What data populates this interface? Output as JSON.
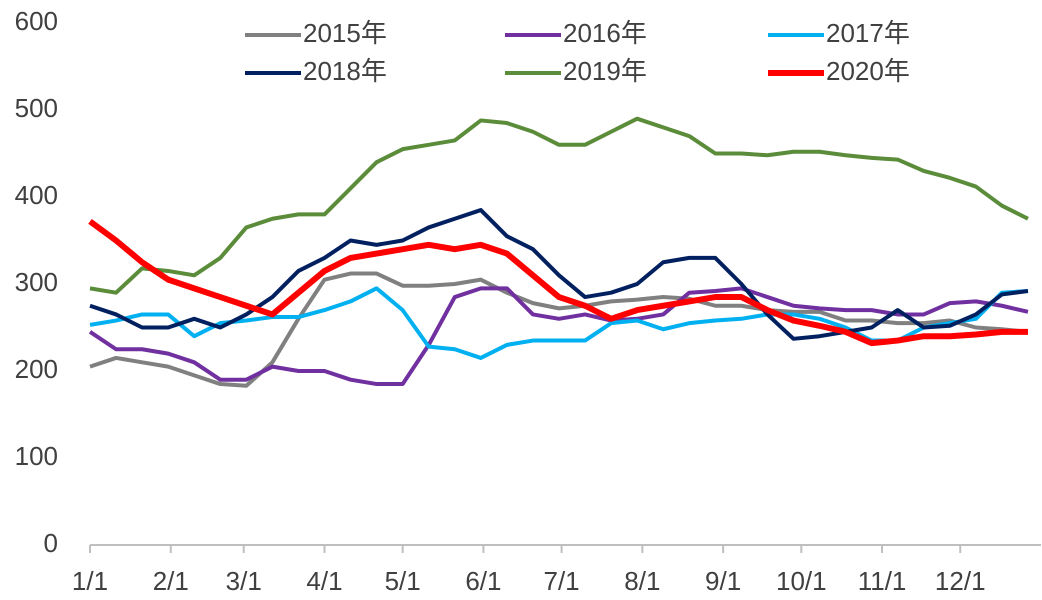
{
  "chart_data": {
    "type": "line",
    "x": [
      0,
      10,
      20,
      30,
      40,
      50,
      60,
      70,
      80,
      90,
      100,
      110,
      120,
      130,
      140,
      150,
      160,
      170,
      180,
      190,
      200,
      210,
      220,
      230,
      240,
      250,
      260,
      270,
      280,
      290,
      300,
      310,
      320,
      330,
      340,
      350,
      360
    ],
    "xlim": [
      0,
      365
    ],
    "xticks": [
      {
        "value": 0,
        "label": "1/1"
      },
      {
        "value": 31,
        "label": "2/1"
      },
      {
        "value": 59,
        "label": "3/1"
      },
      {
        "value": 90,
        "label": "4/1"
      },
      {
        "value": 120,
        "label": "5/1"
      },
      {
        "value": 151,
        "label": "6/1"
      },
      {
        "value": 181,
        "label": "7/1"
      },
      {
        "value": 212,
        "label": "8/1"
      },
      {
        "value": 243,
        "label": "9/1"
      },
      {
        "value": 273,
        "label": "10/1"
      },
      {
        "value": 304,
        "label": "11/1"
      },
      {
        "value": 334,
        "label": "12/1"
      }
    ],
    "ylim": [
      0,
      600
    ],
    "yticks": [
      0,
      100,
      200,
      300,
      400,
      500,
      600
    ],
    "series": [
      {
        "name": "2015年",
        "color": "#808080",
        "width": 4,
        "values": [
          205,
          215,
          210,
          205,
          195,
          185,
          183,
          210,
          260,
          305,
          312,
          312,
          298,
          298,
          300,
          305,
          290,
          278,
          272,
          275,
          280,
          282,
          285,
          283,
          275,
          275,
          270,
          268,
          268,
          258,
          258,
          255,
          255,
          258,
          250,
          248,
          245
        ]
      },
      {
        "name": "2016年",
        "color": "#7030a0",
        "width": 4,
        "values": [
          245,
          225,
          225,
          220,
          210,
          190,
          190,
          205,
          200,
          200,
          190,
          185,
          185,
          230,
          285,
          295,
          295,
          265,
          260,
          265,
          258,
          260,
          265,
          290,
          292,
          295,
          285,
          275,
          272,
          270,
          270,
          265,
          265,
          278,
          280,
          275,
          268
        ]
      },
      {
        "name": "2017年",
        "color": "#00b0f0",
        "width": 4,
        "values": [
          253,
          258,
          265,
          265,
          240,
          255,
          258,
          262,
          262,
          270,
          280,
          295,
          270,
          228,
          225,
          215,
          230,
          235,
          235,
          235,
          255,
          258,
          248,
          255,
          258,
          260,
          265,
          265,
          260,
          250,
          235,
          235,
          250,
          255,
          260,
          290,
          292
        ]
      },
      {
        "name": "2018年",
        "color": "#002060",
        "width": 4,
        "values": [
          275,
          265,
          250,
          250,
          260,
          250,
          265,
          285,
          315,
          330,
          350,
          345,
          350,
          365,
          375,
          385,
          355,
          340,
          310,
          285,
          290,
          300,
          325,
          330,
          330,
          300,
          265,
          237,
          240,
          245,
          250,
          270,
          250,
          252,
          265,
          288,
          292
        ]
      },
      {
        "name": "2019年",
        "color": "#5b8c3a",
        "width": 4,
        "values": [
          295,
          290,
          318,
          315,
          310,
          330,
          365,
          375,
          380,
          380,
          410,
          440,
          455,
          460,
          465,
          488,
          485,
          475,
          460,
          460,
          475,
          490,
          480,
          470,
          450,
          450,
          448,
          452,
          452,
          448,
          445,
          443,
          430,
          422,
          412,
          390,
          375
        ]
      },
      {
        "name": "2020年",
        "color": "#ff0000",
        "width": 6,
        "values": [
          372,
          350,
          325,
          305,
          295,
          285,
          275,
          265,
          290,
          315,
          330,
          335,
          340,
          345,
          340,
          345,
          335,
          310,
          285,
          275,
          260,
          270,
          275,
          280,
          285,
          285,
          270,
          258,
          252,
          245,
          232,
          235,
          240,
          240,
          242,
          245,
          245
        ]
      }
    ]
  }
}
